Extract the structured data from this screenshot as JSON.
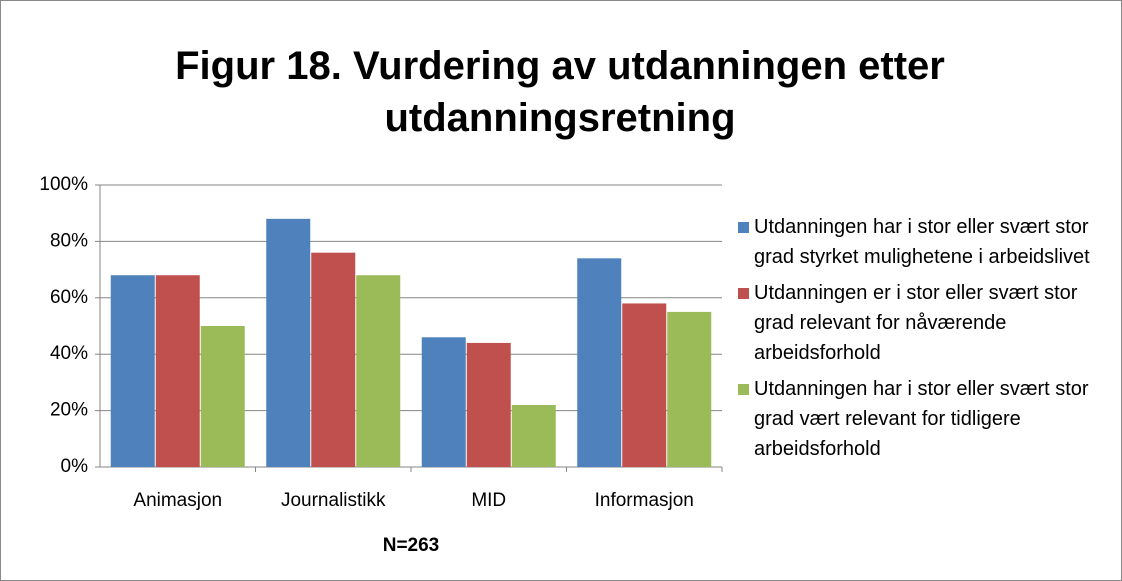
{
  "chart_data": {
    "type": "bar",
    "title": "Figur 18. Vurdering av utdanningen etter utdanningsretning",
    "x_label": "N=263",
    "categories": [
      "Animasjon",
      "Journalistikk",
      "MID",
      "Informasjon"
    ],
    "series": [
      {
        "name": "Utdanningen har i stor eller svært stor grad styrket mulighetene i arbeidslivet",
        "color": "#4f81bd",
        "values": [
          68,
          88,
          46,
          74
        ]
      },
      {
        "name": "Utdanningen er i stor eller svært stor grad relevant for nåværende arbeidsforhold",
        "color": "#c0504d",
        "values": [
          68,
          76,
          44,
          58
        ]
      },
      {
        "name": "Utdanningen har i stor eller svært stor grad vært relevant for tidligere arbeidsforhold",
        "color": "#9bbb59",
        "values": [
          50,
          68,
          22,
          55
        ]
      }
    ],
    "ylim": [
      0,
      100
    ],
    "yticks": [
      {
        "value": 0,
        "label": "0%"
      },
      {
        "value": 20,
        "label": "20%"
      },
      {
        "value": 40,
        "label": "40%"
      },
      {
        "value": 60,
        "label": "60%"
      },
      {
        "value": 80,
        "label": "80%"
      },
      {
        "value": 100,
        "label": "100%"
      }
    ],
    "grid": true,
    "legend": "right"
  }
}
